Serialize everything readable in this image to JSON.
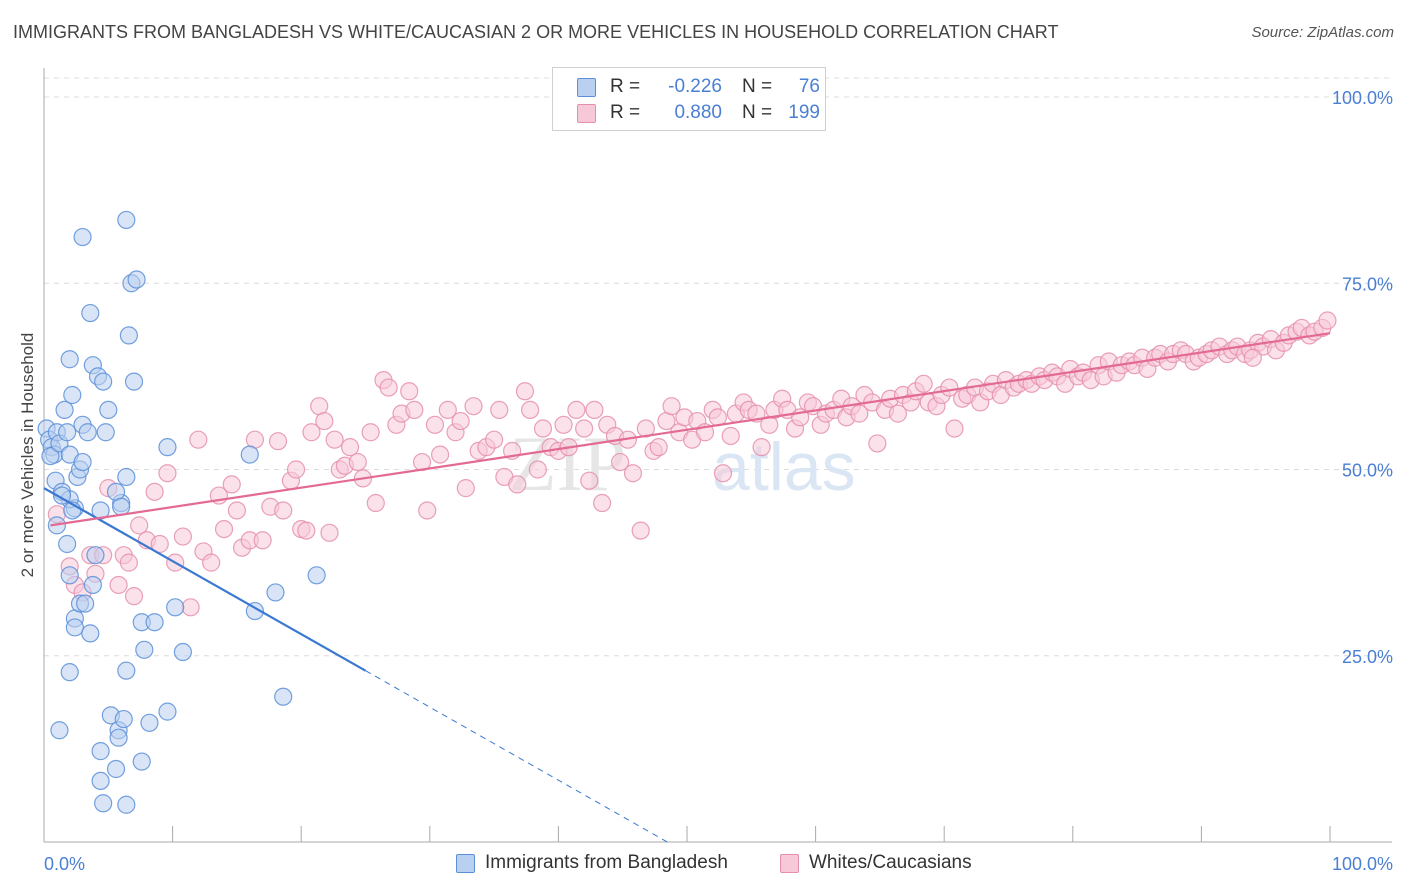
{
  "title": "IMMIGRANTS FROM BANGLADESH VS WHITE/CAUCASIAN 2 OR MORE VEHICLES IN HOUSEHOLD CORRELATION CHART",
  "source": "Source: ZipAtlas.com",
  "watermark": {
    "zip": "ZIP",
    "atlas": "atlas"
  },
  "legend": {
    "series": [
      {
        "r_label": "R =",
        "r_value": "-0.226",
        "n_label": "N =",
        "n_value": "76"
      },
      {
        "r_label": "R =",
        "r_value": "0.880",
        "n_label": "N =",
        "n_value": "199"
      }
    ]
  },
  "bottom_legend": [
    "Immigrants from Bangladesh",
    "Whites/Caucasians"
  ],
  "colors": {
    "blue_fill": "#b9d0f1",
    "blue_stroke": "#5b8fd8",
    "blue_line": "#3a78d1",
    "pink_fill": "#f7c9d8",
    "pink_stroke": "#e58fad",
    "pink_line": "#e36a93",
    "tick_label": "#4a7fd4",
    "grid": "#dcdcdc"
  },
  "chart_data": {
    "type": "scatter",
    "title": "IMMIGRANTS FROM BANGLADESH VS WHITE/CAUCASIAN 2 OR MORE VEHICLES IN HOUSEHOLD CORRELATION CHART",
    "xlabel": "",
    "ylabel": "2 or more Vehicles in Household",
    "xlim": [
      0,
      100
    ],
    "ylim": [
      0,
      100
    ],
    "x_tick_labels": [
      "0.0%",
      "100.0%"
    ],
    "y_ticks": [
      25,
      50,
      75,
      100
    ],
    "y_tick_labels": [
      "25.0%",
      "50.0%",
      "75.0%",
      "100.0%"
    ],
    "grid": true,
    "legend_position": "top-center",
    "series": [
      {
        "name": "Immigrants from Bangladesh",
        "r": -0.226,
        "n": 76,
        "trend": {
          "x": [
            0,
            25.0
          ],
          "y": [
            47.5,
            23.0
          ]
        },
        "trend_extension": {
          "x": [
            25.0,
            100
          ],
          "y": [
            23.0,
            -50.5
          ]
        },
        "points": [
          [
            0.2,
            55.5
          ],
          [
            0.4,
            54.0
          ],
          [
            0.6,
            53.0
          ],
          [
            0.8,
            52.0
          ],
          [
            1.0,
            55.0
          ],
          [
            0.5,
            51.8
          ],
          [
            1.2,
            53.5
          ],
          [
            0.9,
            48.5
          ],
          [
            1.4,
            47.0
          ],
          [
            1.0,
            42.5
          ],
          [
            1.6,
            58.0
          ],
          [
            1.8,
            55.0
          ],
          [
            2.0,
            52.0
          ],
          [
            2.2,
            60.0
          ],
          [
            2.0,
            64.8
          ],
          [
            1.8,
            40.0
          ],
          [
            2.4,
            44.8
          ],
          [
            2.6,
            49.0
          ],
          [
            2.8,
            50.0
          ],
          [
            3.0,
            51.0
          ],
          [
            3.0,
            56.0
          ],
          [
            3.4,
            55.0
          ],
          [
            3.8,
            64.0
          ],
          [
            2.4,
            30.0
          ],
          [
            2.0,
            35.8
          ],
          [
            2.4,
            28.8
          ],
          [
            2.8,
            32.0
          ],
          [
            3.2,
            32.0
          ],
          [
            3.6,
            28.0
          ],
          [
            3.8,
            34.5
          ],
          [
            4.0,
            38.5
          ],
          [
            3.0,
            81.2
          ],
          [
            3.6,
            71.0
          ],
          [
            4.2,
            62.5
          ],
          [
            4.6,
            61.8
          ],
          [
            4.4,
            44.5
          ],
          [
            4.8,
            55.0
          ],
          [
            5.0,
            58.0
          ],
          [
            6.0,
            45.5
          ],
          [
            6.4,
            49.0
          ],
          [
            6.8,
            75.0
          ],
          [
            7.0,
            61.8
          ],
          [
            6.6,
            68.0
          ],
          [
            6.4,
            83.5
          ],
          [
            7.2,
            75.5
          ],
          [
            9.6,
            53.0
          ],
          [
            10.2,
            31.5
          ],
          [
            7.6,
            29.5
          ],
          [
            8.6,
            29.5
          ],
          [
            10.8,
            25.5
          ],
          [
            6.4,
            23.0
          ],
          [
            2.0,
            22.8
          ],
          [
            1.2,
            15.0
          ],
          [
            5.2,
            17.0
          ],
          [
            5.8,
            15.0
          ],
          [
            5.8,
            14.0
          ],
          [
            6.2,
            16.5
          ],
          [
            8.2,
            16.0
          ],
          [
            9.6,
            17.5
          ],
          [
            7.6,
            10.8
          ],
          [
            4.4,
            12.2
          ],
          [
            5.6,
            9.8
          ],
          [
            4.4,
            8.2
          ],
          [
            4.6,
            5.2
          ],
          [
            6.4,
            5.0
          ],
          [
            16.0,
            52.0
          ],
          [
            16.4,
            31.0
          ],
          [
            18.0,
            33.5
          ],
          [
            18.6,
            19.5
          ],
          [
            21.2,
            35.8
          ],
          [
            2.0,
            46.0
          ],
          [
            2.2,
            44.5
          ],
          [
            1.4,
            46.5
          ],
          [
            5.6,
            47.0
          ],
          [
            7.8,
            25.8
          ],
          [
            6.0,
            45.0
          ]
        ]
      },
      {
        "name": "Whites/Caucasians",
        "r": 0.88,
        "n": 199,
        "trend": {
          "x": [
            0.5,
            100
          ],
          "y": [
            42.5,
            68.3
          ]
        },
        "points": [
          [
            1.0,
            44.0
          ],
          [
            2.0,
            37.0
          ],
          [
            2.4,
            34.5
          ],
          [
            3.0,
            33.5
          ],
          [
            3.6,
            38.5
          ],
          [
            4.0,
            36.0
          ],
          [
            4.6,
            38.5
          ],
          [
            5.0,
            47.5
          ],
          [
            5.8,
            34.5
          ],
          [
            6.2,
            38.5
          ],
          [
            6.6,
            37.5
          ],
          [
            7.0,
            33.0
          ],
          [
            7.4,
            42.5
          ],
          [
            8.0,
            40.5
          ],
          [
            8.6,
            47.0
          ],
          [
            9.0,
            40.0
          ],
          [
            9.6,
            49.5
          ],
          [
            10.2,
            37.5
          ],
          [
            10.8,
            41.0
          ],
          [
            11.4,
            31.5
          ],
          [
            12.0,
            54.0
          ],
          [
            12.4,
            39.0
          ],
          [
            13.0,
            37.5
          ],
          [
            13.6,
            46.5
          ],
          [
            14.0,
            42.0
          ],
          [
            14.6,
            48.0
          ],
          [
            15.0,
            44.5
          ],
          [
            15.4,
            39.5
          ],
          [
            16.0,
            40.5
          ],
          [
            16.4,
            54.0
          ],
          [
            17.0,
            40.5
          ],
          [
            17.6,
            45.0
          ],
          [
            18.2,
            53.8
          ],
          [
            18.6,
            44.5
          ],
          [
            19.2,
            48.5
          ],
          [
            19.6,
            50.0
          ],
          [
            20.0,
            42.0
          ],
          [
            20.4,
            41.8
          ],
          [
            20.8,
            55.0
          ],
          [
            21.4,
            58.5
          ],
          [
            21.8,
            56.5
          ],
          [
            22.2,
            41.5
          ],
          [
            22.6,
            54.0
          ],
          [
            23.0,
            50.0
          ],
          [
            23.4,
            50.5
          ],
          [
            23.8,
            53.0
          ],
          [
            24.4,
            51.0
          ],
          [
            24.8,
            48.8
          ],
          [
            25.4,
            55.0
          ],
          [
            25.8,
            45.5
          ],
          [
            26.4,
            62.0
          ],
          [
            26.8,
            61.0
          ],
          [
            27.4,
            56.0
          ],
          [
            27.8,
            57.5
          ],
          [
            28.4,
            60.5
          ],
          [
            28.8,
            58.0
          ],
          [
            29.4,
            51.0
          ],
          [
            29.8,
            44.5
          ],
          [
            30.4,
            56.0
          ],
          [
            30.8,
            52.0
          ],
          [
            31.4,
            58.0
          ],
          [
            32.0,
            55.0
          ],
          [
            32.4,
            56.5
          ],
          [
            32.8,
            47.5
          ],
          [
            33.4,
            58.5
          ],
          [
            33.8,
            52.5
          ],
          [
            34.4,
            53.0
          ],
          [
            35.0,
            54.0
          ],
          [
            35.4,
            58.0
          ],
          [
            35.8,
            49.0
          ],
          [
            36.4,
            52.5
          ],
          [
            36.8,
            48.0
          ],
          [
            37.4,
            60.5
          ],
          [
            37.8,
            58.0
          ],
          [
            38.4,
            50.0
          ],
          [
            38.8,
            55.5
          ],
          [
            39.4,
            53.0
          ],
          [
            40.0,
            52.5
          ],
          [
            40.4,
            56.0
          ],
          [
            40.8,
            53.0
          ],
          [
            41.4,
            58.0
          ],
          [
            42.0,
            55.5
          ],
          [
            42.4,
            48.5
          ],
          [
            42.8,
            58.0
          ],
          [
            43.4,
            45.5
          ],
          [
            43.8,
            56.0
          ],
          [
            44.4,
            54.5
          ],
          [
            44.8,
            51.0
          ],
          [
            45.4,
            54.0
          ],
          [
            45.8,
            49.5
          ],
          [
            46.4,
            41.8
          ],
          [
            46.8,
            55.5
          ],
          [
            47.4,
            52.5
          ],
          [
            47.8,
            53.0
          ],
          [
            48.4,
            56.5
          ],
          [
            48.8,
            58.5
          ],
          [
            49.4,
            55.0
          ],
          [
            49.8,
            57.0
          ],
          [
            50.4,
            54.0
          ],
          [
            50.8,
            56.5
          ],
          [
            51.4,
            55.0
          ],
          [
            52.0,
            58.0
          ],
          [
            52.4,
            57.0
          ],
          [
            52.8,
            49.5
          ],
          [
            53.4,
            54.5
          ],
          [
            53.8,
            57.5
          ],
          [
            54.4,
            59.0
          ],
          [
            54.8,
            58.0
          ],
          [
            55.4,
            57.5
          ],
          [
            55.8,
            53.0
          ],
          [
            56.4,
            56.0
          ],
          [
            56.8,
            58.0
          ],
          [
            57.4,
            59.5
          ],
          [
            57.8,
            58.0
          ],
          [
            58.4,
            55.5
          ],
          [
            58.8,
            57.0
          ],
          [
            59.4,
            59.0
          ],
          [
            59.8,
            58.5
          ],
          [
            60.4,
            56.0
          ],
          [
            60.8,
            57.5
          ],
          [
            61.4,
            58.0
          ],
          [
            62.0,
            59.5
          ],
          [
            62.4,
            57.0
          ],
          [
            62.8,
            58.5
          ],
          [
            63.4,
            57.5
          ],
          [
            63.8,
            60.0
          ],
          [
            64.4,
            59.0
          ],
          [
            64.8,
            53.5
          ],
          [
            65.4,
            58.0
          ],
          [
            65.8,
            59.5
          ],
          [
            66.4,
            57.5
          ],
          [
            66.8,
            60.0
          ],
          [
            67.4,
            59.0
          ],
          [
            67.8,
            60.5
          ],
          [
            68.4,
            61.5
          ],
          [
            68.8,
            59.0
          ],
          [
            69.4,
            58.5
          ],
          [
            69.8,
            60.0
          ],
          [
            70.4,
            61.0
          ],
          [
            70.8,
            55.5
          ],
          [
            71.4,
            59.5
          ],
          [
            71.8,
            60.0
          ],
          [
            72.4,
            61.0
          ],
          [
            72.8,
            59.0
          ],
          [
            73.4,
            60.5
          ],
          [
            73.8,
            61.5
          ],
          [
            74.4,
            60.0
          ],
          [
            74.8,
            62.0
          ],
          [
            75.4,
            61.0
          ],
          [
            75.8,
            61.5
          ],
          [
            76.4,
            62.0
          ],
          [
            76.8,
            61.5
          ],
          [
            77.4,
            62.5
          ],
          [
            77.8,
            62.0
          ],
          [
            78.4,
            63.0
          ],
          [
            78.8,
            62.5
          ],
          [
            79.4,
            61.5
          ],
          [
            79.8,
            63.5
          ],
          [
            80.4,
            62.5
          ],
          [
            80.8,
            63.0
          ],
          [
            81.4,
            62.0
          ],
          [
            82.0,
            64.0
          ],
          [
            82.4,
            62.5
          ],
          [
            82.8,
            64.5
          ],
          [
            83.4,
            63.0
          ],
          [
            83.8,
            64.0
          ],
          [
            84.4,
            64.5
          ],
          [
            84.8,
            64.0
          ],
          [
            85.4,
            65.0
          ],
          [
            85.8,
            63.5
          ],
          [
            86.4,
            65.0
          ],
          [
            86.8,
            65.5
          ],
          [
            87.4,
            64.5
          ],
          [
            87.8,
            65.5
          ],
          [
            88.4,
            66.0
          ],
          [
            88.8,
            65.5
          ],
          [
            89.4,
            64.5
          ],
          [
            89.8,
            65.0
          ],
          [
            90.4,
            65.5
          ],
          [
            90.8,
            66.0
          ],
          [
            91.4,
            66.5
          ],
          [
            92.0,
            65.5
          ],
          [
            92.4,
            66.0
          ],
          [
            92.8,
            66.5
          ],
          [
            93.4,
            65.5
          ],
          [
            93.8,
            66.0
          ],
          [
            94.4,
            67.0
          ],
          [
            94.8,
            66.5
          ],
          [
            95.4,
            67.5
          ],
          [
            95.8,
            66.0
          ],
          [
            96.4,
            67.0
          ],
          [
            96.8,
            68.0
          ],
          [
            97.4,
            68.5
          ],
          [
            97.8,
            69.0
          ],
          [
            98.4,
            68.0
          ],
          [
            98.8,
            68.5
          ],
          [
            99.4,
            69.0
          ],
          [
            99.8,
            70.0
          ],
          [
            94.0,
            65.0
          ]
        ]
      }
    ]
  }
}
